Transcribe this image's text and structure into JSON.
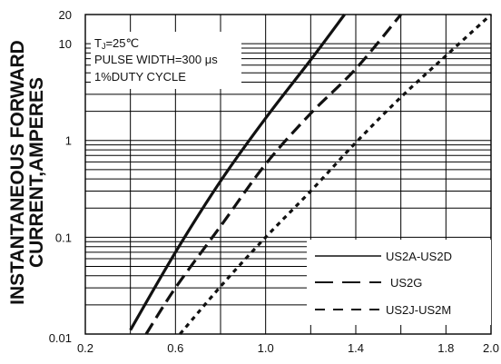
{
  "chart_data": {
    "type": "line",
    "xscale": "linear",
    "yscale": "log",
    "xlim": [
      0.2,
      2.0
    ],
    "ylim": [
      0.01,
      20
    ],
    "x_ticks": [
      "0.2",
      "0.6",
      "1.0",
      "1.4",
      "1.8",
      "2.0"
    ],
    "x_tick_values": [
      0.2,
      0.6,
      1.0,
      1.4,
      1.8,
      2.0
    ],
    "y_ticks": [
      "0.01",
      "0.1",
      "1",
      "10",
      "20"
    ],
    "y_tick_values": [
      0.01,
      0.1,
      1,
      10,
      20
    ],
    "ylabel_lines": [
      "INSTANTANEOUS FORWARD",
      "CURRENT,AMPERES"
    ],
    "xlabel": "",
    "grid": true,
    "legend_position": "bottom-right",
    "annotation": {
      "tj_prefix": "T",
      "tj_sub": "J",
      "tj_rest": "=25℃",
      "line2": "PULSE WIDTH=300 μs",
      "line3": "1%DUTY CYCLE"
    },
    "series": [
      {
        "name": "US2A-US2D",
        "style": "solid",
        "x": [
          0.4,
          0.6,
          0.8,
          1.0,
          1.2,
          1.35
        ],
        "y": [
          0.011,
          0.07,
          0.38,
          1.7,
          6.8,
          20
        ]
      },
      {
        "name": "US2G",
        "style": "dashed",
        "x": [
          0.47,
          0.6,
          0.8,
          1.0,
          1.2,
          1.4,
          1.6
        ],
        "y": [
          0.01,
          0.03,
          0.13,
          0.57,
          1.9,
          5.5,
          20
        ]
      },
      {
        "name": "US2J-US2M",
        "style": "dotted",
        "x": [
          0.62,
          0.8,
          1.0,
          1.2,
          1.4,
          1.6,
          1.8,
          2.0
        ],
        "y": [
          0.01,
          0.031,
          0.1,
          0.3,
          0.95,
          2.8,
          7.5,
          20
        ]
      }
    ]
  }
}
